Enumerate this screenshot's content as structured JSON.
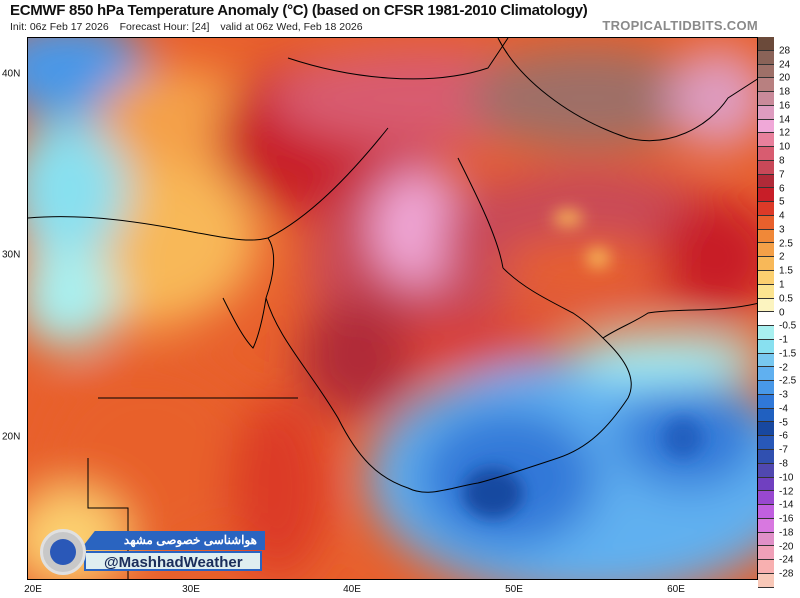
{
  "header": {
    "title": "ECMWF 850 hPa Temperature Anomaly (°C) (based on CFSR 1981-2010 Climatology)",
    "init": "Init: 06z Feb 17 2026",
    "forecast_hour": "Forecast Hour: [24]",
    "valid": "valid at 06z Wed, Feb 18 2026",
    "brand": "TROPICALTIDBITS.COM"
  },
  "axes": {
    "x_labels": [
      "20E",
      "30E",
      "40E",
      "50E",
      "60E"
    ],
    "y_labels": [
      "40N",
      "30N",
      "20N"
    ]
  },
  "colorbar": {
    "labels": [
      "28",
      "24",
      "20",
      "18",
      "16",
      "14",
      "12",
      "10",
      "8",
      "7",
      "6",
      "5",
      "4",
      "3",
      "2.5",
      "2",
      "1.5",
      "1",
      "0.5",
      "0",
      "-0.5",
      "-1",
      "-1.5",
      "-2",
      "-2.5",
      "-3",
      "-4",
      "-5",
      "-6",
      "-7",
      "-8",
      "-10",
      "-12",
      "-14",
      "-16",
      "-18",
      "-20",
      "-24",
      "-28"
    ],
    "colors": [
      "#6b4a3a",
      "#8a6358",
      "#9e7068",
      "#b88080",
      "#c98a9a",
      "#de9cc0",
      "#f0a8d8",
      "#e8809c",
      "#d85c70",
      "#c84858",
      "#b02a38",
      "#c81e28",
      "#dc3a28",
      "#e8602c",
      "#f08838",
      "#f4a048",
      "#f8b858",
      "#fcd070",
      "#fce490",
      "#fcf4c0",
      "#ffffff",
      "#a8f0f0",
      "#88e0f0",
      "#78c8f0",
      "#60b0f0",
      "#4898e8",
      "#3078d8",
      "#2060c0",
      "#1848a0",
      "#2858b8",
      "#3050b0",
      "#5048b0",
      "#7040c0",
      "#9848d0",
      "#c060e0",
      "#d878e0",
      "#e090c8",
      "#f0a0b8",
      "#f8b0b0",
      "#f8c8b8"
    ]
  },
  "watermark": {
    "name_fa": "هواشناسی خصوصی مشهد",
    "handle": "@MashhadWeather"
  }
}
